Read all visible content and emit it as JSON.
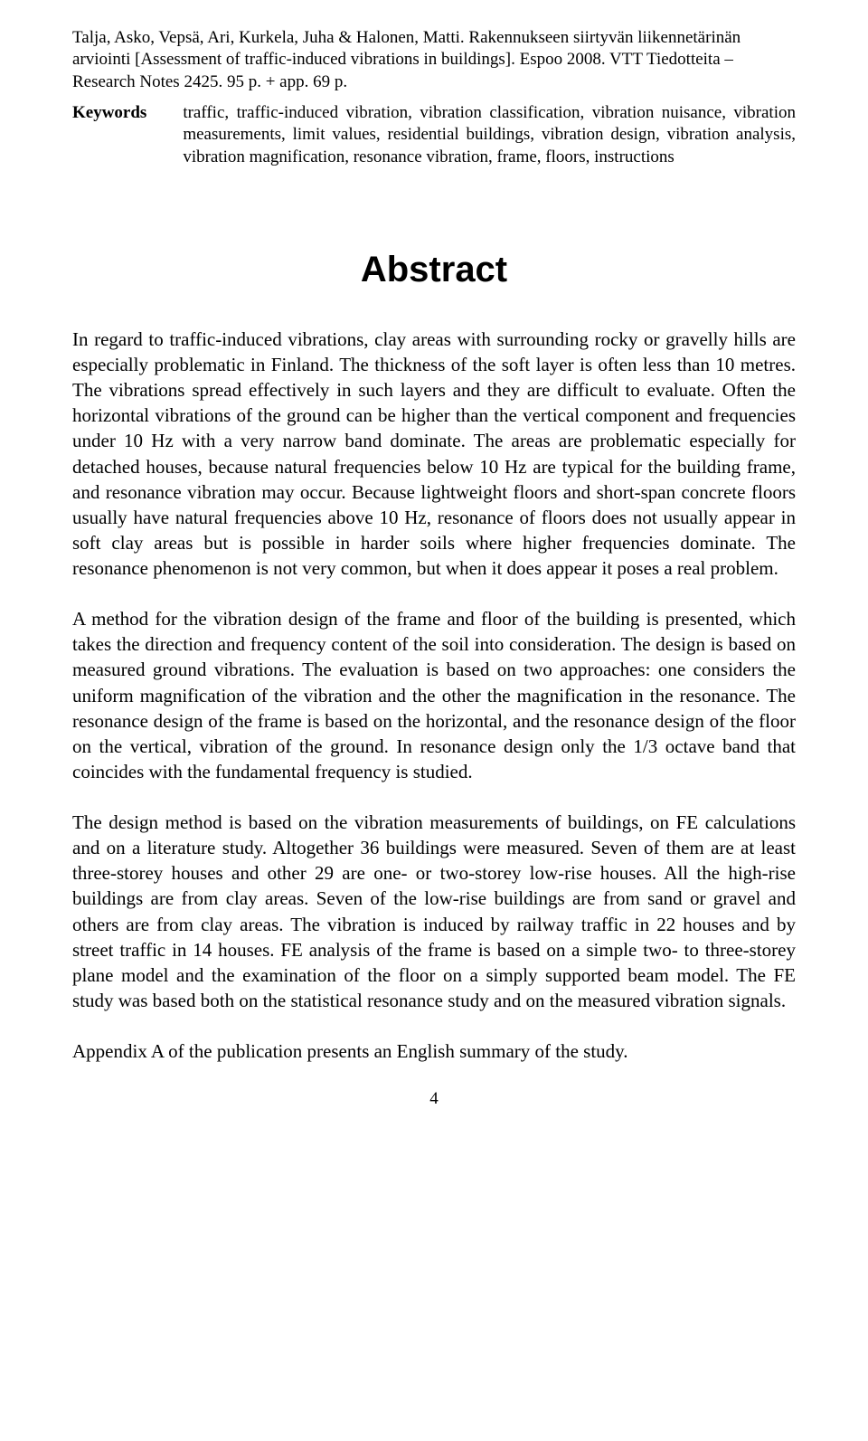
{
  "citation": "Talja, Asko, Vepsä, Ari, Kurkela, Juha & Halonen, Matti. Rakennukseen siirtyvän liikennetärinän arviointi [Assessment of traffic-induced vibrations in buildings]. Espoo 2008. VTT Tiedotteita – Research Notes 2425. 95 p. + app. 69 p.",
  "keywords": {
    "label": "Keywords",
    "text": "traffic, traffic-induced vibration, vibration classification, vibration nuisance, vibration measurements, limit values, residential buildings, vibration design, vibration analysis, vibration magnification, resonance vibration, frame, floors, instructions"
  },
  "abstract": {
    "title": "Abstract",
    "paragraphs": [
      "In regard to traffic-induced vibrations, clay areas with surrounding rocky or gravelly hills are especially problematic in Finland. The thickness of the soft layer is often less than 10 metres. The vibrations spread effectively in such layers and they are difficult to evaluate. Often the horizontal vibrations of the ground can be higher than the vertical component and frequencies under 10 Hz with a very narrow band dominate. The areas are problematic especially for detached houses, because natural frequencies below 10 Hz are typical for the building frame, and resonance vibration may occur. Because lightweight floors and short-span concrete floors usually have natural frequencies above 10 Hz, resonance of floors does not usually appear in soft clay areas but is possible in harder soils where higher frequencies dominate. The resonance phenomenon is not very common, but when it does appear it poses a real problem.",
      "A method for the vibration design of the frame and floor of the building is presented, which takes the direction and frequency content of the soil into consideration. The design is based on measured ground vibrations. The evaluation is based on two approaches: one considers the uniform magnification of the vibration and the other the magnification in the resonance. The resonance design of the frame is based on the horizontal, and the resonance design of the floor on the vertical, vibration of the ground. In resonance design only the 1/3 octave band that coincides with the fundamental frequency is studied.",
      "The design method is based on the vibration measurements of buildings, on FE calculations and on a literature study. Altogether 36 buildings were measured. Seven of them are at least three-storey houses and other 29 are one- or two-storey low-rise houses. All the high-rise buildings are from clay areas. Seven of the low-rise buildings are from sand or gravel and others are from clay areas. The vibration is induced by railway traffic in 22 houses and by street traffic in 14 houses. FE analysis of the frame is based on a simple two- to three-storey plane model and the examination of the floor on a simply supported beam model. The FE study was based both on the statistical resonance study and on the measured vibration signals.",
      "Appendix A of the publication presents an English summary of the study."
    ]
  },
  "page_number": "4"
}
